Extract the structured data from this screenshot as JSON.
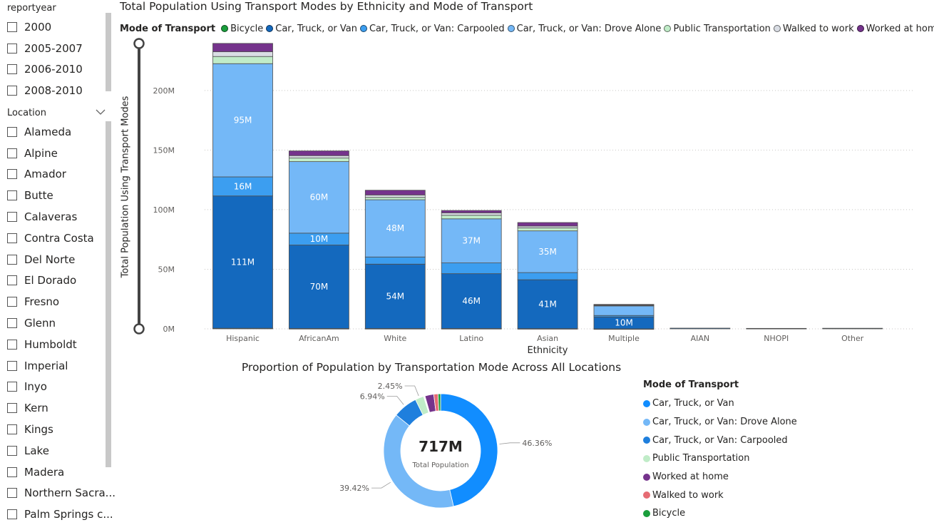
{
  "slicers": {
    "reportyear": {
      "title": "reportyear",
      "items": [
        "2000",
        "2005-2007",
        "2006-2010",
        "2008-2010"
      ]
    },
    "location": {
      "title": "Location",
      "items": [
        "Alameda",
        "Alpine",
        "Amador",
        "Butte",
        "Calaveras",
        "Contra Costa",
        "Del Norte",
        "El Dorado",
        "Fresno",
        "Glenn",
        "Humboldt",
        "Imperial",
        "Inyo",
        "Kern",
        "Kings",
        "Lake",
        "Madera",
        "Northern Sacra...",
        "Palm Springs c..."
      ]
    }
  },
  "colors": {
    "Bicycle": "#1a9e3c",
    "Car, Truck, or Van": "#1469be",
    "Car, Truck, or Van: Carpooled": "#3c9ef0",
    "Car, Truck, or Van: Drove Alone": "#74b8f7",
    "Public Transportation": "#c0ecc8",
    "Walked to work": "#d9dde4",
    "Worked at home": "#75338c"
  },
  "chart_data": [
    {
      "type": "bar",
      "stacked": true,
      "title": "Total Population Using Transport Modes by Ethnicity and Mode of Transport",
      "xlabel": "Ethnicity",
      "ylabel": "Total Population Using Transport Modes",
      "legend_title": "Mode of Transport",
      "legend_position": "top",
      "ylim": [
        0,
        240
      ],
      "y_ticks": [
        0,
        50,
        100,
        150,
        200
      ],
      "y_tick_labels": [
        "0M",
        "50M",
        "100M",
        "150M",
        "200M"
      ],
      "grid": true,
      "categories": [
        "Hispanic",
        "AfricanAm",
        "White",
        "Latino",
        "Asian",
        "Multiple",
        "AIAN",
        "NHOPI",
        "Other"
      ],
      "series": [
        {
          "name": "Bicycle",
          "values": [
            0.5,
            0.3,
            0.3,
            0.3,
            0.2,
            0.02,
            0,
            0,
            0
          ],
          "labels": [
            "",
            "",
            "",
            "",
            "",
            "",
            "",
            "",
            ""
          ]
        },
        {
          "name": "Car, Truck, or Van",
          "values": [
            111,
            70,
            54,
            46,
            41,
            10,
            0.6,
            0.4,
            0.5
          ],
          "labels": [
            "111M",
            "70M",
            "54M",
            "46M",
            "41M",
            "10M",
            "",
            "",
            ""
          ]
        },
        {
          "name": "Car, Truck, or Van: Carpooled",
          "values": [
            16,
            10,
            6,
            9,
            6,
            1.2,
            0,
            0,
            0
          ],
          "labels": [
            "16M",
            "10M",
            "",
            "",
            "",
            "",
            "",
            "",
            ""
          ]
        },
        {
          "name": "Car, Truck, or Van: Drove Alone",
          "values": [
            95,
            60,
            48,
            37,
            35,
            8,
            0,
            0,
            0
          ],
          "labels": [
            "95M",
            "60M",
            "48M",
            "37M",
            "35M",
            "",
            "",
            "",
            ""
          ]
        },
        {
          "name": "Public Transportation",
          "values": [
            6,
            3,
            2,
            3,
            2.5,
            0.5,
            0,
            0,
            0
          ],
          "labels": [
            "",
            "",
            "",
            "",
            "",
            "",
            "",
            "",
            ""
          ]
        },
        {
          "name": "Walked to work",
          "values": [
            4,
            2,
            2,
            2,
            1.5,
            0.3,
            0,
            0,
            0
          ],
          "labels": [
            "",
            "",
            "",
            "",
            "",
            "",
            "",
            "",
            ""
          ]
        },
        {
          "name": "Worked at home",
          "values": [
            7,
            4,
            4,
            2,
            3,
            0.5,
            0,
            0,
            0
          ],
          "labels": [
            "",
            "",
            "",
            "",
            "",
            "",
            "",
            "",
            ""
          ]
        }
      ]
    },
    {
      "type": "pie",
      "donut": true,
      "title": "Proportion of Population by Transportation Mode Across All Locations",
      "center_value": "717M",
      "center_label": "Total Population",
      "legend_title": "Mode of Transport",
      "legend_position": "right",
      "legend_items": [
        {
          "name": "Car, Truck, or Van",
          "color": "#118dff"
        },
        {
          "name": "Car, Truck, or Van: Drove Alone",
          "color": "#74b8f7"
        },
        {
          "name": "Car, Truck, or Van: Carpooled",
          "color": "#1f7fdd"
        },
        {
          "name": "Public Transportation",
          "color": "#c0ecc8"
        },
        {
          "name": "Worked at home",
          "color": "#75338c"
        },
        {
          "name": "Walked to work",
          "color": "#e66c74"
        },
        {
          "name": "Bicycle",
          "color": "#1a9e3c"
        }
      ],
      "slices": [
        {
          "name": "Car, Truck, or Van",
          "value": 46.36,
          "label": "46.36%",
          "color": "#118dff"
        },
        {
          "name": "Car, Truck, or Van: Drove Alone",
          "value": 39.42,
          "label": "39.42%",
          "color": "#74b8f7"
        },
        {
          "name": "Car, Truck, or Van: Carpooled",
          "value": 6.94,
          "label": "6.94%",
          "color": "#1f7fdd"
        },
        {
          "name": "Public Transportation",
          "value": 2.45,
          "label": "2.45%",
          "color": "#c0ecc8"
        },
        {
          "name": "Walked to work",
          "value": 0.4,
          "label": "",
          "color": "#ffffff"
        },
        {
          "name": "Worked at home",
          "value": 2.5,
          "label": "",
          "color": "#75338c"
        },
        {
          "name": "Walked to work",
          "value": 1.2,
          "label": "",
          "color": "#e66c74"
        },
        {
          "name": "Bicycle",
          "value": 0.73,
          "label": "",
          "color": "#1a9e3c"
        }
      ]
    }
  ]
}
